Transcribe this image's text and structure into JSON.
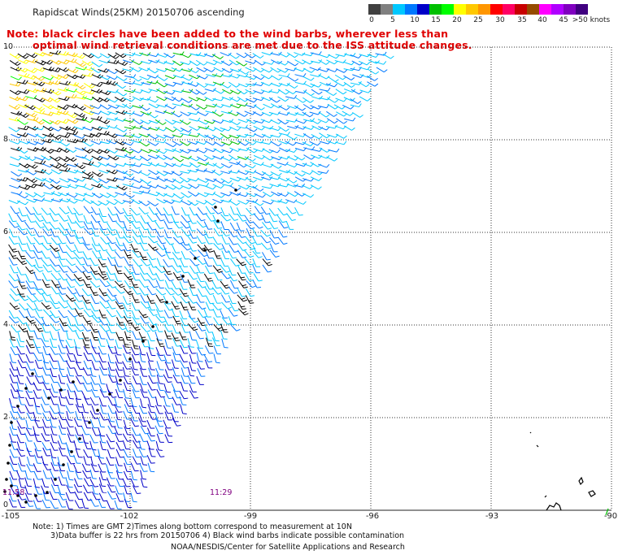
{
  "header": {
    "title": "Rapidscat Winds(25KM) 20150706 ascending",
    "note_line1": "Note: black circles have been added to the wind barbs, wherever less than",
    "note_line2": "optimal wind retrieval conditions are met due to the ISS attitude changes."
  },
  "legend": {
    "labels": [
      "0",
      "5",
      "10",
      "15",
      "20",
      "25",
      "30",
      "35",
      "40",
      "45",
      ">50 knots"
    ],
    "colors": [
      "#404040",
      "#808080",
      "#00c8ff",
      "#0078ff",
      "#0000c8",
      "#00c000",
      "#00ff00",
      "#ffff00",
      "#ffc800",
      "#ff9600",
      "#ff0000",
      "#ff0064",
      "#c80000",
      "#964b00",
      "#ff00ff",
      "#b000ff",
      "#8000c0",
      "#400080"
    ]
  },
  "map": {
    "lat_labels": [
      "10",
      "8",
      "6",
      "4",
      "2",
      "0"
    ],
    "lon_labels": [
      "-105",
      "-102",
      "-99",
      "-96",
      "-93",
      "-90"
    ],
    "swath_times": [
      "11:58",
      "11:29"
    ],
    "island_labels": []
  },
  "footer": {
    "line1": "Note: 1) Times are GMT 2)Times along bottom correspond to measurement at 10N",
    "line2": "3)Data buffer is 22 hrs from 20150706 4) Black wind barbs indicate possible contamination",
    "line3": "NOAA/NESDIS/Center for Satellite Applications and Research"
  }
}
